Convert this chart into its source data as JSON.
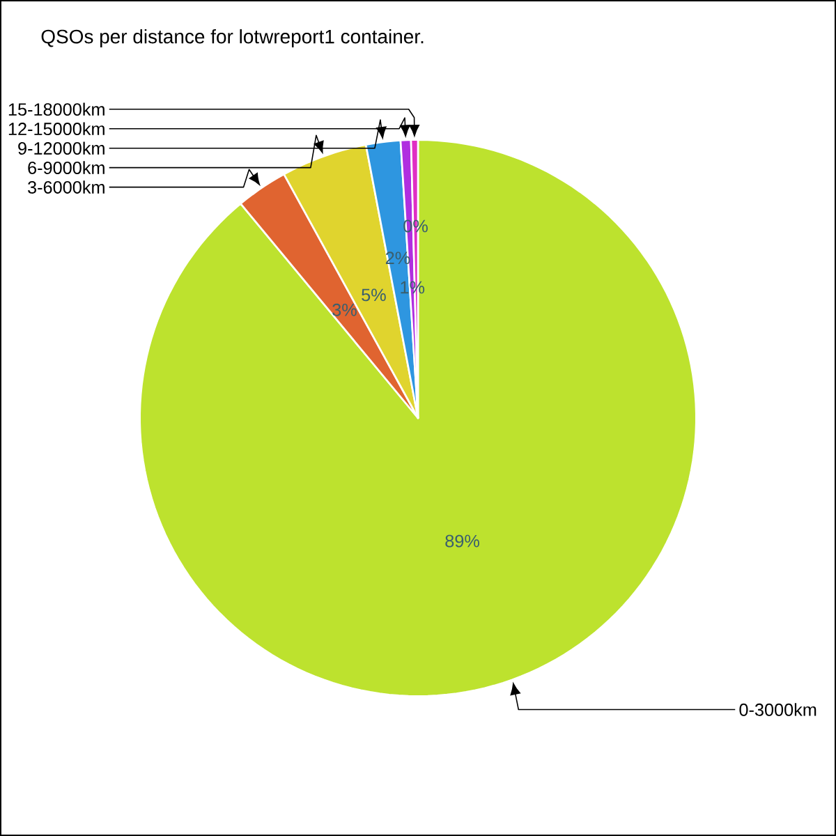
{
  "chart_data": {
    "type": "pie",
    "title": "QSOs per distance for lotwreport1 container.",
    "categories": [
      "0-3000km",
      "3-6000km",
      "6-9000km",
      "9-12000km",
      "12-15000km",
      "15-18000km"
    ],
    "values": [
      89,
      3,
      5,
      2,
      0.6,
      0.4
    ],
    "colors": [
      "#bde22e",
      "#e06430",
      "#e0d42e",
      "#2e96e0",
      "#b02ee0",
      "#e02ec4"
    ],
    "value_labels": [
      "89%",
      "3%",
      "5%",
      "2%",
      "1%",
      "0%"
    ]
  }
}
